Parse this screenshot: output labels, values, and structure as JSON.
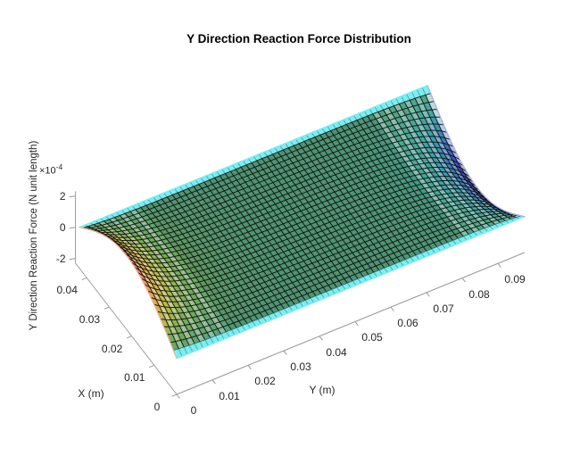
{
  "title": "Y Direction Reaction Force Distribution",
  "chart_data": {
    "type": "3d-surface",
    "title": "Y Direction Reaction Force Distribution",
    "xlabel": "X (m)",
    "ylabel": "Y (m)",
    "zlabel": "Y Direction Reaction Force (N unit length)",
    "z_exponent_base": "×10",
    "z_exponent_power": "-4",
    "x_ticks": [
      0,
      0.01,
      0.02,
      0.03,
      0.04
    ],
    "y_ticks": [
      0,
      0.01,
      0.02,
      0.03,
      0.04,
      0.05,
      0.06,
      0.07,
      0.08,
      0.09
    ],
    "z_ticks": [
      -2,
      0,
      2
    ],
    "xlim": [
      0,
      0.045
    ],
    "ylim": [
      0,
      0.0975
    ],
    "zlim_1e4": [
      -2.3,
      2.3
    ],
    "grid": "off",
    "legend": "none",
    "surface_model": {
      "formula": "Z(X,Y) = A*sin(pi*X/Lx)*(exp(-Y/delta) - exp(-(Ly-Y)/delta)), Z in 1e-4 N/unit length",
      "amplitude_1e4": 2.25,
      "Lx_m": 0.045,
      "Ly_m": 0.0975,
      "delta_m": 0.0085,
      "grid_nx": 30,
      "grid_ny": 66,
      "description": "Reaction force is ~0 over the plate interior; it arches up to about +2.2e-4 along the Y=0 edge (peak at mid-X, warm colors) and dips to about -2.2e-4 along the Y=0.0975 edge (cool colors). Dense black mesh over colored facets, cyan fringes along the X=0 and X=0.045 edges."
    },
    "colors": {
      "colormap_stops": [
        [
          0.0,
          "#282878"
        ],
        [
          0.15,
          "#3c50c8"
        ],
        [
          0.3,
          "#3c9ab4"
        ],
        [
          0.42,
          "#4aa894"
        ],
        [
          0.5,
          "#58a17e"
        ],
        [
          0.6,
          "#72aa5c"
        ],
        [
          0.72,
          "#bdbb4a"
        ],
        [
          0.84,
          "#e8a848"
        ],
        [
          0.94,
          "#f0876a"
        ],
        [
          1.0,
          "#f6ad98"
        ]
      ],
      "mesh_line": "rgba(12,16,12,0.88)",
      "x_edge_border": "#7ceef2",
      "x_edge_stroke": "rgba(30,130,140,0.5)",
      "y0_edge_fringe": "#f5b2a0",
      "ymax_edge_fringe": "#b7aee8",
      "axis_line": "#999999",
      "tick_text": "#262626",
      "title_color": "#000000",
      "background": "#ffffff"
    }
  }
}
